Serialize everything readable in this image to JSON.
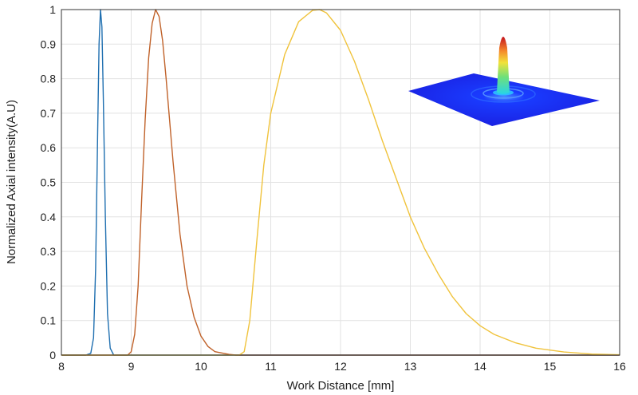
{
  "chart_data": {
    "type": "line",
    "xlabel": "Work Distance [mm]",
    "ylabel": "Normalized Axial intensity(A.U)",
    "xlim": [
      8,
      16
    ],
    "ylim": [
      0,
      1
    ],
    "grid": true,
    "legend": "none",
    "x_ticks": [
      "8",
      "9",
      "10",
      "11",
      "12",
      "13",
      "14",
      "15",
      "16"
    ],
    "y_ticks": [
      "0",
      "0.1",
      "0.2",
      "0.3",
      "0.4",
      "0.5",
      "0.6",
      "0.7",
      "0.8",
      "0.9",
      "1"
    ],
    "inset": "3d-intensity-peak-surface",
    "series": [
      {
        "color": "#1f6fb0",
        "points": [
          [
            8.0,
            0
          ],
          [
            8.35,
            0
          ],
          [
            8.42,
            0.005
          ],
          [
            8.46,
            0.05
          ],
          [
            8.49,
            0.25
          ],
          [
            8.52,
            0.65
          ],
          [
            8.54,
            0.9
          ],
          [
            8.56,
            1.0
          ],
          [
            8.58,
            0.95
          ],
          [
            8.6,
            0.75
          ],
          [
            8.63,
            0.4
          ],
          [
            8.66,
            0.12
          ],
          [
            8.7,
            0.02
          ],
          [
            8.75,
            0
          ],
          [
            16,
            0
          ]
        ]
      },
      {
        "color": "#c0622a",
        "points": [
          [
            8.0,
            0
          ],
          [
            8.95,
            0
          ],
          [
            9.0,
            0.01
          ],
          [
            9.05,
            0.06
          ],
          [
            9.1,
            0.2
          ],
          [
            9.15,
            0.45
          ],
          [
            9.2,
            0.68
          ],
          [
            9.25,
            0.86
          ],
          [
            9.3,
            0.96
          ],
          [
            9.35,
            1.0
          ],
          [
            9.4,
            0.98
          ],
          [
            9.45,
            0.91
          ],
          [
            9.5,
            0.8
          ],
          [
            9.6,
            0.56
          ],
          [
            9.7,
            0.35
          ],
          [
            9.8,
            0.2
          ],
          [
            9.9,
            0.11
          ],
          [
            10.0,
            0.055
          ],
          [
            10.1,
            0.025
          ],
          [
            10.2,
            0.01
          ],
          [
            10.4,
            0.002
          ],
          [
            10.5,
            0
          ],
          [
            16,
            0
          ]
        ]
      },
      {
        "color": "#f0c33c",
        "points": [
          [
            8.0,
            0
          ],
          [
            10.55,
            0
          ],
          [
            10.62,
            0.01
          ],
          [
            10.7,
            0.1
          ],
          [
            10.8,
            0.33
          ],
          [
            10.9,
            0.55
          ],
          [
            11.0,
            0.7
          ],
          [
            11.2,
            0.87
          ],
          [
            11.4,
            0.965
          ],
          [
            11.6,
            0.998
          ],
          [
            11.7,
            1.0
          ],
          [
            11.8,
            0.99
          ],
          [
            12.0,
            0.94
          ],
          [
            12.2,
            0.85
          ],
          [
            12.4,
            0.74
          ],
          [
            12.6,
            0.62
          ],
          [
            12.8,
            0.51
          ],
          [
            13.0,
            0.4
          ],
          [
            13.2,
            0.31
          ],
          [
            13.4,
            0.235
          ],
          [
            13.6,
            0.17
          ],
          [
            13.8,
            0.12
          ],
          [
            14.0,
            0.085
          ],
          [
            14.2,
            0.06
          ],
          [
            14.5,
            0.036
          ],
          [
            14.8,
            0.02
          ],
          [
            15.2,
            0.009
          ],
          [
            15.6,
            0.003
          ],
          [
            16.0,
            0.001
          ]
        ]
      }
    ]
  }
}
